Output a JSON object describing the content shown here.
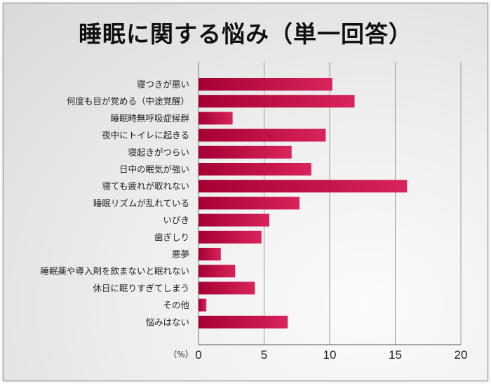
{
  "chart_data": {
    "type": "bar",
    "orientation": "horizontal",
    "title": "睡眠に関する悩み（単一回答）",
    "xlabel": "（%）",
    "ylabel": "",
    "xlim": [
      0,
      20
    ],
    "xticks": [
      0,
      5,
      10,
      15,
      20
    ],
    "grid": true,
    "categories": [
      "寝つきが悪い",
      "何度も目が覚める（中途覚醒）",
      "睡眠時無呼吸症候群",
      "夜中にトイレに起きる",
      "寝起きがつらい",
      "日中の眠気が強い",
      "寝ても疲れが取れない",
      "睡眠リズムが乱れている",
      "いびき",
      "歯ぎしり",
      "悪夢",
      "睡眠薬や導入剤を飲まないと眠れない",
      "休日に眠りすぎてしまう",
      "その他",
      "悩みはない"
    ],
    "values": [
      10.2,
      11.9,
      2.6,
      9.7,
      7.1,
      8.6,
      15.9,
      7.7,
      5.4,
      4.8,
      1.7,
      2.8,
      4.3,
      0.6,
      6.8
    ],
    "colors": {
      "bar_dark": "#a50034",
      "bar_light": "#d8245a",
      "grid": "#9a9a9a"
    }
  }
}
